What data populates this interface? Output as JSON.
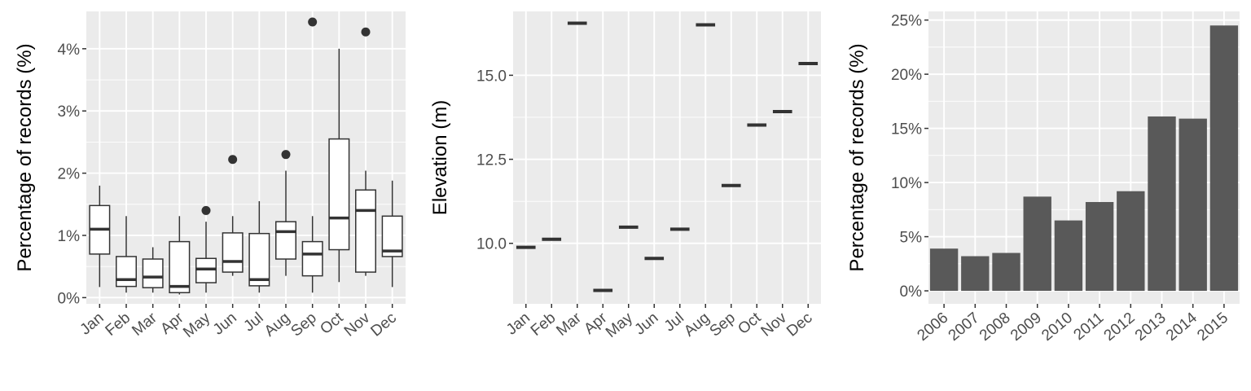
{
  "chart_data": [
    {
      "type": "box",
      "ylabel": "Percentage of records (%)",
      "xlabel": "",
      "ylim": [
        -0.1,
        4.6
      ],
      "yticks": [
        0,
        1,
        2,
        3,
        4
      ],
      "ytick_labels": [
        "0%",
        "1%",
        "2%",
        "3%",
        "4%"
      ],
      "categories": [
        "Jan",
        "Feb",
        "Mar",
        "Apr",
        "May",
        "Jun",
        "Jul",
        "Aug",
        "Sep",
        "Oct",
        "Nov",
        "Dec"
      ],
      "boxes": [
        {
          "min": 0.17,
          "q1": 0.7,
          "median": 1.1,
          "q3": 1.48,
          "max": 1.8,
          "outliers": []
        },
        {
          "min": 0.08,
          "q1": 0.18,
          "median": 0.29,
          "q3": 0.66,
          "max": 1.31,
          "outliers": []
        },
        {
          "min": 0.08,
          "q1": 0.16,
          "median": 0.33,
          "q3": 0.62,
          "max": 0.81,
          "outliers": []
        },
        {
          "min": 0.05,
          "q1": 0.08,
          "median": 0.18,
          "q3": 0.9,
          "max": 1.31,
          "outliers": []
        },
        {
          "min": 0.08,
          "q1": 0.24,
          "median": 0.46,
          "q3": 0.63,
          "max": 1.22,
          "outliers": [
            1.4
          ]
        },
        {
          "min": 0.35,
          "q1": 0.41,
          "median": 0.58,
          "q3": 1.04,
          "max": 1.31,
          "outliers": [
            2.22
          ]
        },
        {
          "min": 0.08,
          "q1": 0.19,
          "median": 0.29,
          "q3": 1.03,
          "max": 1.55,
          "outliers": []
        },
        {
          "min": 0.35,
          "q1": 0.62,
          "median": 1.06,
          "q3": 1.22,
          "max": 2.04,
          "outliers": [
            2.3
          ]
        },
        {
          "min": 0.08,
          "q1": 0.35,
          "median": 0.7,
          "q3": 0.9,
          "max": 1.31,
          "outliers": [
            4.43
          ]
        },
        {
          "min": 0.25,
          "q1": 0.77,
          "median": 1.28,
          "q3": 2.55,
          "max": 4.0,
          "outliers": []
        },
        {
          "min": 0.35,
          "q1": 0.41,
          "median": 1.4,
          "q3": 1.73,
          "max": 2.04,
          "outliers": [
            4.27
          ]
        },
        {
          "min": 0.17,
          "q1": 0.66,
          "median": 0.75,
          "q3": 1.31,
          "max": 1.88,
          "outliers": []
        }
      ],
      "grid": true
    },
    {
      "type": "box",
      "ylabel": "Elevation (m)",
      "xlabel": "",
      "ylim": [
        8.2,
        16.9
      ],
      "yticks": [
        10.0,
        12.5,
        15.0
      ],
      "ytick_labels": [
        "10.0",
        "12.5",
        "15.0"
      ],
      "categories": [
        "Jan",
        "Feb",
        "Mar",
        "Apr",
        "May",
        "Jun",
        "Jul",
        "Aug",
        "Sep",
        "Oct",
        "Nov",
        "Dec"
      ],
      "values": [
        9.88,
        10.12,
        16.55,
        8.6,
        10.48,
        9.55,
        10.42,
        16.5,
        11.72,
        13.52,
        13.92,
        15.35
      ],
      "grid": true
    },
    {
      "type": "bar",
      "ylabel": "Percentage of records (%)",
      "xlabel": "",
      "ylim": [
        -1.2,
        25.8
      ],
      "yticks": [
        0,
        5,
        10,
        15,
        20,
        25
      ],
      "ytick_labels": [
        "0%",
        "5%",
        "10%",
        "15%",
        "20%",
        "25%"
      ],
      "categories": [
        "2006",
        "2007",
        "2008",
        "2009",
        "2010",
        "2011",
        "2012",
        "2013",
        "2014",
        "2015"
      ],
      "values": [
        3.9,
        3.2,
        3.5,
        8.7,
        6.5,
        8.2,
        9.2,
        16.1,
        15.9,
        24.5
      ],
      "bar_color": "#595959",
      "grid": true
    }
  ],
  "colors": {
    "panel_bg": "#ebebeb",
    "grid": "#ffffff",
    "box_stroke": "#333333",
    "tick_text": "#4d4d4d"
  }
}
